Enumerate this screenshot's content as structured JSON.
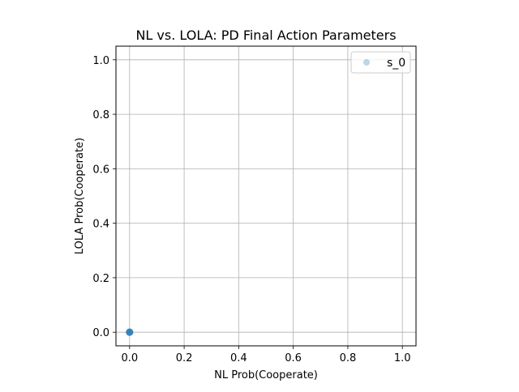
{
  "chart_data": {
    "type": "scatter",
    "title": "NL vs. LOLA: PD Final Action Parameters",
    "xlabel": "NL Prob(Cooperate)",
    "ylabel": "LOLA Prob(Cooperate)",
    "xlim": [
      -0.05,
      1.05
    ],
    "ylim": [
      -0.05,
      1.05
    ],
    "xticks": [
      0.0,
      0.2,
      0.4,
      0.6,
      0.8,
      1.0
    ],
    "yticks": [
      0.0,
      0.2,
      0.4,
      0.6,
      0.8,
      1.0
    ],
    "xtick_labels": [
      "0.0",
      "0.2",
      "0.4",
      "0.6",
      "0.8",
      "1.0"
    ],
    "ytick_labels": [
      "0.0",
      "0.2",
      "0.4",
      "0.6",
      "0.8",
      "1.0"
    ],
    "grid": true,
    "legend_position": "top-right",
    "series": [
      {
        "name": "s_0",
        "color": "#1f77b4",
        "alpha": 0.3,
        "points": [
          {
            "x": 0.0,
            "y": 0.0
          },
          {
            "x": 0.0,
            "y": 0.0
          },
          {
            "x": 0.0,
            "y": 0.0
          },
          {
            "x": 0.0,
            "y": 0.0
          },
          {
            "x": 0.0,
            "y": 0.0
          },
          {
            "x": 0.0,
            "y": 0.0
          }
        ]
      }
    ]
  }
}
